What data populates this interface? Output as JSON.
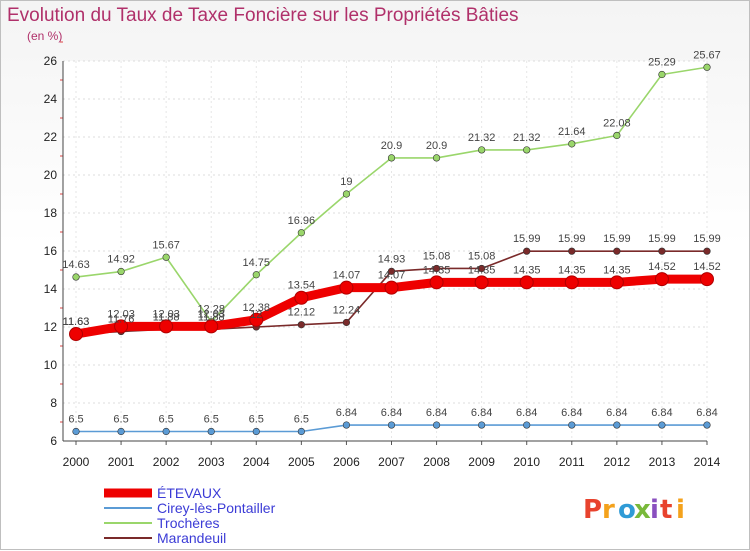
{
  "header": {
    "title": "Evolution du Taux de Taxe Foncière sur les Propriétés Bâties",
    "unit": "(en %)"
  },
  "logo": {
    "text": "Proxiti",
    "colors": [
      "#e8432e",
      "#f4a21c",
      "#2f9bd6",
      "#79b93a",
      "#8a4fbf",
      "#e8432e",
      "#f4a21c"
    ]
  },
  "chart_data": {
    "type": "line",
    "title": "Evolution du Taux de Taxe Foncière sur les Propriétés Bâties",
    "ylabel": "(en %)",
    "xlabel": "",
    "x": [
      "2000",
      "2001",
      "2002",
      "2003",
      "2004",
      "2005",
      "2006",
      "2007",
      "2008",
      "2009",
      "2010",
      "2011",
      "2012",
      "2013",
      "2014"
    ],
    "ylim": [
      6,
      26
    ],
    "yticks": [
      6,
      8,
      10,
      12,
      14,
      16,
      18,
      20,
      22,
      24,
      26
    ],
    "grid": true,
    "legend_position": "bottom-left",
    "series": [
      {
        "name": "ÉTEVAUX",
        "color": "#ee0000",
        "values": [
          11.63,
          12.03,
          12.03,
          12.03,
          12.38,
          13.54,
          14.07,
          14.07,
          14.35,
          14.35,
          14.35,
          14.35,
          14.35,
          14.52,
          14.52
        ]
      },
      {
        "name": "Cirey-lès-Pontailler",
        "color": "#5b9bd5",
        "values": [
          6.5,
          6.5,
          6.5,
          6.5,
          6.5,
          6.5,
          6.84,
          6.84,
          6.84,
          6.84,
          6.84,
          6.84,
          6.84,
          6.84,
          6.84
        ]
      },
      {
        "name": "Trochères",
        "color": "#9ad66b",
        "values": [
          14.63,
          14.92,
          15.67,
          12.28,
          14.75,
          16.96,
          19,
          20.9,
          20.9,
          21.32,
          21.32,
          21.64,
          22.08,
          25.29,
          25.67
        ]
      },
      {
        "name": "Marandeuil",
        "color": "#7a2a2a",
        "values": [
          11.63,
          11.76,
          11.88,
          11.88,
          12,
          12.12,
          12.24,
          14.93,
          15.08,
          15.08,
          15.99,
          15.99,
          15.99,
          15.99,
          15.99
        ]
      }
    ]
  }
}
